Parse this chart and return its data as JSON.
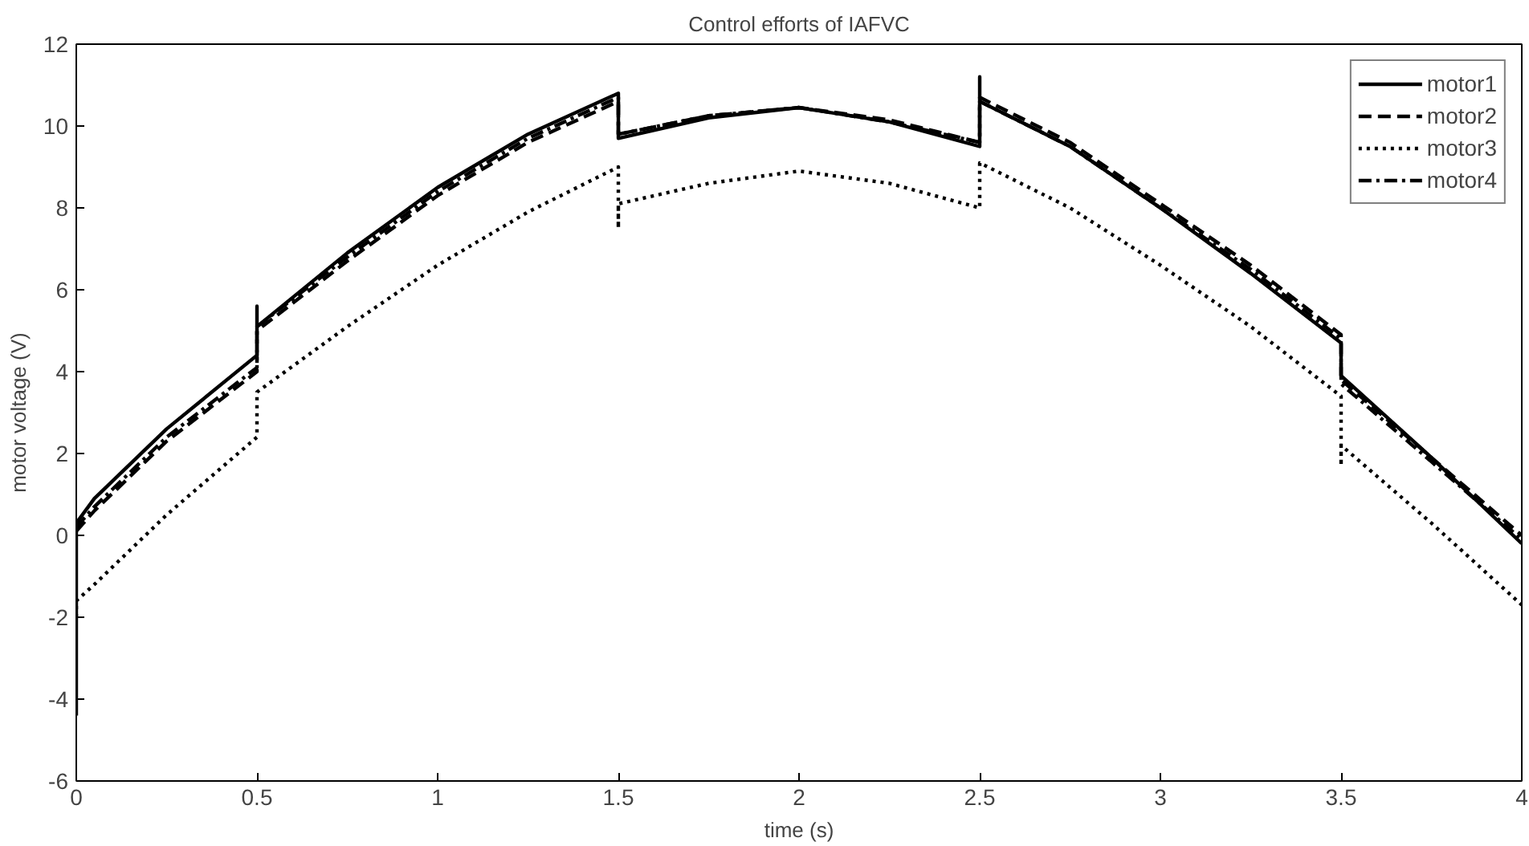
{
  "chart_data": {
    "type": "line",
    "title": "Control efforts of IAFVC",
    "xlabel": "time (s)",
    "ylabel": "motor voltage (V)",
    "xlim": [
      0,
      4
    ],
    "ylim": [
      -6,
      12
    ],
    "xticks": [
      0,
      0.5,
      1,
      1.5,
      2,
      2.5,
      3,
      3.5,
      4
    ],
    "yticks": [
      -6,
      -4,
      -2,
      0,
      2,
      4,
      6,
      8,
      10,
      12
    ],
    "grid": false,
    "legend": "top right",
    "marker": "none",
    "series": [
      {
        "name": "motor1",
        "color": "#000000",
        "line_style": "solid",
        "x": [
          0,
          0,
          0.05,
          0.25,
          0.5,
          0.5,
          0.5,
          0.75,
          1,
          1.25,
          1.5,
          1.5,
          1.75,
          2,
          2.25,
          2.5,
          2.5,
          2.5,
          2.75,
          3,
          3.25,
          3.5,
          3.5,
          3.75,
          4
        ],
        "values": [
          -4.4,
          0.3,
          0.9,
          2.6,
          4.4,
          5.6,
          5.1,
          6.9,
          8.5,
          9.8,
          10.8,
          9.7,
          10.2,
          10.45,
          10.1,
          9.5,
          11.2,
          10.6,
          9.5,
          8.0,
          6.4,
          4.7,
          3.9,
          1.9,
          -0.2
        ]
      },
      {
        "name": "motor2",
        "color": "#000000",
        "line_style": "dashed",
        "x": [
          0,
          0.05,
          0.25,
          0.5,
          0.5,
          0.75,
          1,
          1.25,
          1.5,
          1.5,
          1.75,
          2,
          2.25,
          2.5,
          2.5,
          2.75,
          3,
          3.25,
          3.5,
          3.5,
          3.75,
          4
        ],
        "values": [
          0.1,
          0.6,
          2.3,
          4.0,
          5.0,
          6.7,
          8.3,
          9.6,
          10.6,
          9.8,
          10.25,
          10.45,
          10.15,
          9.6,
          10.7,
          9.6,
          8.1,
          6.6,
          4.9,
          3.8,
          1.9,
          0.0
        ]
      },
      {
        "name": "motor3",
        "color": "#000000",
        "line_style": "dotted",
        "x": [
          0,
          0,
          0.05,
          0.25,
          0.5,
          0.5,
          0.5,
          0.75,
          1,
          1.25,
          1.5,
          1.5,
          1.5,
          1.75,
          2,
          2.25,
          2.5,
          2.5,
          2.75,
          3,
          3.25,
          3.5,
          3.5,
          3.5,
          3.75,
          4
        ],
        "values": [
          -2.0,
          -1.6,
          -1.2,
          0.5,
          2.4,
          3.4,
          3.5,
          5.1,
          6.6,
          7.9,
          9.0,
          7.5,
          8.1,
          8.6,
          8.9,
          8.6,
          8.0,
          9.1,
          8.0,
          6.6,
          5.1,
          3.4,
          1.7,
          2.2,
          0.3,
          -1.7
        ]
      },
      {
        "name": "motor4",
        "color": "#000000",
        "line_style": "dashdot",
        "x": [
          0,
          0.05,
          0.25,
          0.5,
          0.5,
          0.75,
          1,
          1.25,
          1.5,
          1.5,
          1.75,
          2,
          2.25,
          2.5,
          2.5,
          2.75,
          3,
          3.25,
          3.5,
          3.5,
          3.75,
          4
        ],
        "values": [
          0.2,
          0.7,
          2.4,
          4.1,
          5.1,
          6.8,
          8.4,
          9.7,
          10.7,
          9.8,
          10.25,
          10.45,
          10.1,
          9.6,
          10.6,
          9.5,
          8.0,
          6.5,
          4.8,
          3.7,
          1.8,
          -0.1
        ]
      }
    ]
  }
}
